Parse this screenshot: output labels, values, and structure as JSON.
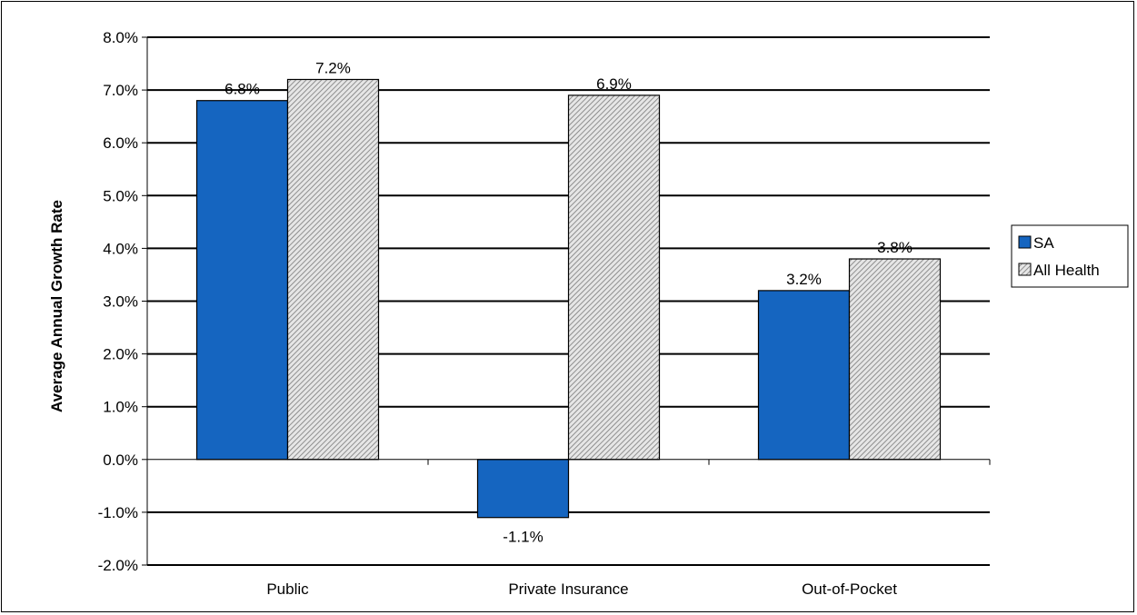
{
  "chart_data": {
    "type": "bar",
    "categories": [
      "Public",
      "Private Insurance",
      "Out-of-Pocket"
    ],
    "series": [
      {
        "name": "SA",
        "values": [
          6.8,
          -1.1,
          3.2
        ],
        "labels": [
          "6.8%",
          "-1.1%",
          "3.2%"
        ],
        "color": "#1565C0",
        "pattern": "solid"
      },
      {
        "name": "All Health",
        "values": [
          7.2,
          6.9,
          3.8
        ],
        "labels": [
          "7.2%",
          "6.9%",
          "3.8%"
        ],
        "color": "#C0C0C0",
        "pattern": "diagonal-hatch"
      }
    ],
    "ylabel": "Average Annual Growth Rate",
    "xlabel": "",
    "title": "",
    "ylim": [
      -2.0,
      8.0
    ],
    "yticks": [
      -2.0,
      -1.0,
      0.0,
      1.0,
      2.0,
      3.0,
      4.0,
      5.0,
      6.0,
      7.0,
      8.0
    ],
    "ytick_labels": [
      "-2.0%",
      "-1.0%",
      "0.0%",
      "1.0%",
      "2.0%",
      "3.0%",
      "4.0%",
      "5.0%",
      "6.0%",
      "7.0%",
      "8.0%"
    ],
    "grid": true,
    "legend_position": "right"
  }
}
